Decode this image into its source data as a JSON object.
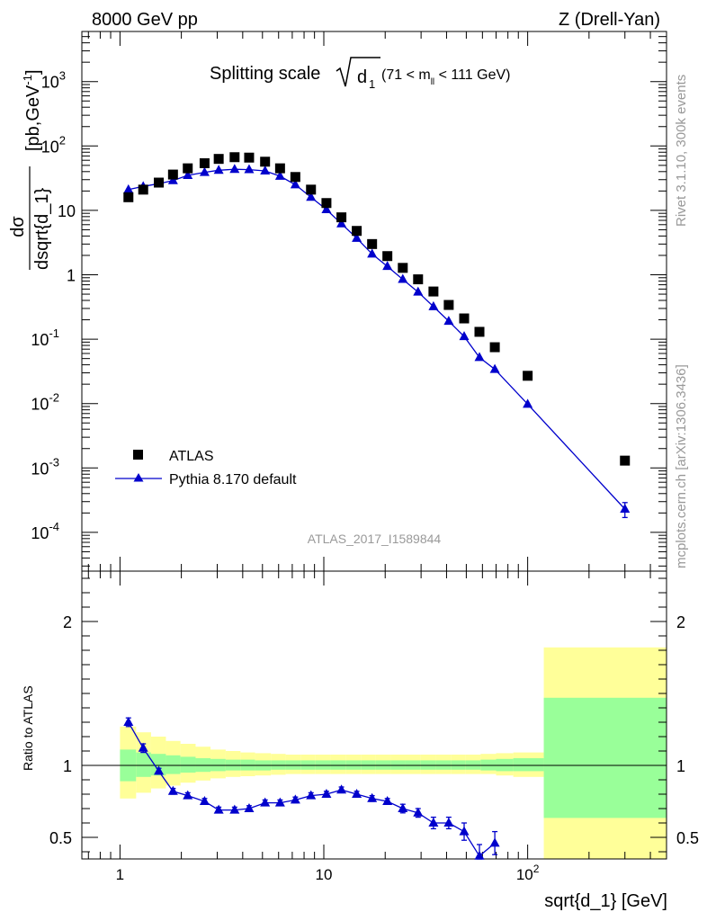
{
  "header": {
    "left": "8000 GeV pp",
    "right": "Z (Drell-Yan)"
  },
  "side_labels": {
    "rivet": "Rivet 3.1.10,  300k events",
    "mcplots": "mcplots.cern.ch [arXiv:1306.3436]"
  },
  "chart_data": {
    "type": "scatter",
    "title": "Splitting scale",
    "title_symbol": "√d₁",
    "title_sqrt_arg": "d",
    "title_sqrt_sub": "1",
    "title_cut": "(71 < m",
    "title_cut_sub": "ll",
    "title_cut_end": " < 111 GeV)",
    "ylabel_num": "dσ",
    "ylabel_den": "dsqrt{d_1}",
    "ylabel_units": "[pb,GeV",
    "ylabel_units_sup": "-1",
    "ylabel_units_end": "]",
    "xlabel": "sqrt{d_1} [GeV]",
    "analysis_label": "ATLAS_2017_I1589844",
    "xscale": "log",
    "xlim": [
      0.65,
      480
    ],
    "ylim": [
      2.5e-05,
      6000
    ],
    "x_tick_labels": [
      "1",
      "10",
      "10",
      "2"
    ],
    "y_tick_labels": [
      {
        "base": "10",
        "exp": "-4",
        "value": 0.0001
      },
      {
        "base": "10",
        "exp": "-3",
        "value": 0.001
      },
      {
        "base": "10",
        "exp": "-2",
        "value": 0.01
      },
      {
        "base": "10",
        "exp": "-1",
        "value": 0.1
      },
      {
        "base": "1",
        "exp": "",
        "value": 1
      },
      {
        "base": "10",
        "exp": "",
        "value": 10
      },
      {
        "base": "10",
        "exp": "2",
        "value": 100
      },
      {
        "base": "10",
        "exp": "3",
        "value": 1000
      }
    ],
    "legend": {
      "position": "lower-left",
      "atlas_label": "ATLAS",
      "mc_label": "Pythia 8.170 default"
    },
    "series": [
      {
        "name": "ATLAS",
        "marker": "square",
        "color": "#000000",
        "x": [
          1.1,
          1.3,
          1.55,
          1.82,
          2.15,
          2.6,
          3.05,
          3.65,
          4.3,
          5.15,
          6.1,
          7.25,
          8.65,
          10.3,
          12.2,
          14.5,
          17.25,
          20.5,
          24.4,
          29,
          34.5,
          41,
          48.8,
          58,
          69,
          100,
          300
        ],
        "y": [
          16,
          21,
          27,
          36,
          45,
          54,
          63,
          67,
          66,
          57,
          45,
          33,
          21,
          13,
          7.8,
          4.8,
          3.0,
          1.95,
          1.28,
          0.85,
          0.55,
          0.34,
          0.21,
          0.13,
          0.075,
          0.027,
          0.0013
        ]
      },
      {
        "name": "Pythia 8.170 default",
        "marker": "triangle",
        "color": "#0000cc",
        "x": [
          1.1,
          1.3,
          1.55,
          1.82,
          2.15,
          2.6,
          3.05,
          3.65,
          4.3,
          5.15,
          6.1,
          7.25,
          8.65,
          10.3,
          12.2,
          14.5,
          17.25,
          20.5,
          24.4,
          29,
          34.5,
          41,
          48.8,
          58,
          69,
          100,
          300
        ],
        "y": [
          21,
          23.5,
          26,
          29,
          35,
          39,
          42,
          43.5,
          43,
          41,
          34,
          25,
          16,
          10.3,
          6.2,
          3.7,
          2.1,
          1.35,
          0.85,
          0.54,
          0.32,
          0.19,
          0.11,
          0.052,
          0.034,
          0.0098,
          0.00023
        ],
        "yerr": [
          0,
          0,
          0,
          0,
          0,
          0,
          0,
          0,
          0,
          0,
          0,
          0,
          0,
          0,
          0,
          0,
          0,
          0,
          0,
          0,
          0,
          0,
          0,
          0,
          0,
          0,
          6e-05
        ]
      }
    ],
    "ratio": {
      "ylabel": "Ratio to ATLAS",
      "ylim": [
        0.35,
        2.35
      ],
      "y_tick_labels": [
        "0.5",
        "1",
        "2"
      ],
      "y_ticks": [
        0.5,
        1,
        2
      ],
      "mc": {
        "x": [
          1.1,
          1.3,
          1.55,
          1.82,
          2.15,
          2.6,
          3.05,
          3.65,
          4.3,
          5.15,
          6.1,
          7.25,
          8.65,
          10.3,
          12.2,
          14.5,
          17.25,
          20.5,
          24.4,
          29,
          34.5,
          41,
          48.8,
          58,
          69
        ],
        "y": [
          1.3,
          1.12,
          0.96,
          0.82,
          0.79,
          0.75,
          0.69,
          0.69,
          0.7,
          0.74,
          0.74,
          0.76,
          0.79,
          0.8,
          0.83,
          0.8,
          0.77,
          0.75,
          0.7,
          0.67,
          0.6,
          0.6,
          0.54,
          0.37,
          0.46
        ],
        "yerr": [
          0.03,
          0.03,
          0.02,
          0.02,
          0.02,
          0.02,
          0.02,
          0.02,
          0.02,
          0.02,
          0.02,
          0.02,
          0.02,
          0.02,
          0.02,
          0.02,
          0.02,
          0.02,
          0.03,
          0.03,
          0.04,
          0.04,
          0.06,
          0.08,
          0.08
        ]
      },
      "bands": {
        "edges": [
          1.0,
          1.2,
          1.42,
          1.68,
          1.98,
          2.35,
          2.78,
          3.3,
          3.9,
          4.6,
          5.5,
          6.5,
          7.7,
          9.1,
          10.8,
          12.8,
          15.2,
          18.0,
          21.3,
          25.2,
          29.9,
          35.4,
          42.0,
          49.7,
          58.8,
          70.0,
          85.0,
          120.0,
          480.0
        ],
        "stat_low": [
          0.89,
          0.92,
          0.93,
          0.94,
          0.95,
          0.955,
          0.96,
          0.965,
          0.965,
          0.965,
          0.97,
          0.97,
          0.97,
          0.97,
          0.97,
          0.97,
          0.97,
          0.97,
          0.97,
          0.97,
          0.97,
          0.97,
          0.97,
          0.97,
          0.965,
          0.96,
          0.96,
          0.635
        ],
        "stat_high": [
          1.11,
          1.09,
          1.08,
          1.07,
          1.06,
          1.05,
          1.045,
          1.04,
          1.04,
          1.035,
          1.035,
          1.035,
          1.035,
          1.035,
          1.035,
          1.035,
          1.035,
          1.035,
          1.035,
          1.035,
          1.035,
          1.035,
          1.035,
          1.035,
          1.04,
          1.045,
          1.05,
          1.47
        ],
        "tot_low": [
          0.77,
          0.81,
          0.84,
          0.86,
          0.88,
          0.895,
          0.91,
          0.92,
          0.925,
          0.93,
          0.935,
          0.94,
          0.94,
          0.94,
          0.94,
          0.94,
          0.94,
          0.94,
          0.94,
          0.94,
          0.94,
          0.94,
          0.94,
          0.94,
          0.94,
          0.93,
          0.92,
          0.35
        ],
        "tot_high": [
          1.27,
          1.23,
          1.2,
          1.17,
          1.15,
          1.13,
          1.11,
          1.1,
          1.09,
          1.085,
          1.08,
          1.075,
          1.075,
          1.075,
          1.075,
          1.075,
          1.075,
          1.075,
          1.075,
          1.075,
          1.075,
          1.075,
          1.075,
          1.075,
          1.08,
          1.085,
          1.09,
          1.82
        ]
      }
    },
    "colors": {
      "stat_band": "#99ff99",
      "total_band": "#ffff99",
      "mc": "#0000cc",
      "data": "#000000",
      "side_text": "#999999"
    }
  }
}
